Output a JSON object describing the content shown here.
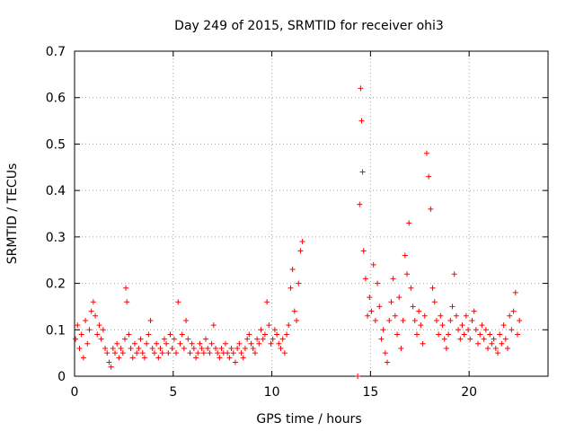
{
  "chart_data": {
    "type": "scatter",
    "title": "Day 249 of 2015, SRMTID for receiver ohi3",
    "xlabel": "GPS time / hours",
    "ylabel": "SRMTID / TECUs",
    "xlim": [
      0,
      24
    ],
    "ylim": [
      0,
      0.7
    ],
    "xticks": [
      0,
      5,
      10,
      15,
      20
    ],
    "yticks": [
      0,
      0.1,
      0.2,
      0.3,
      0.4,
      0.5,
      0.6,
      0.7
    ],
    "grid": true,
    "marker": "+",
    "color": "#ff0000",
    "series": [
      {
        "name": "SRMTID",
        "points": [
          [
            0.05,
            0.08
          ],
          [
            0.15,
            0.11
          ],
          [
            0.25,
            0.06
          ],
          [
            0.35,
            0.09
          ],
          [
            0.45,
            0.04
          ],
          [
            0.55,
            0.12
          ],
          [
            0.65,
            0.07
          ],
          [
            0.75,
            0.1
          ],
          [
            0.85,
            0.14
          ],
          [
            0.95,
            0.16
          ],
          [
            1.05,
            0.13
          ],
          [
            1.15,
            0.09
          ],
          [
            1.25,
            0.11
          ],
          [
            1.35,
            0.08
          ],
          [
            1.45,
            0.1
          ],
          [
            1.55,
            0.06
          ],
          [
            1.65,
            0.05
          ],
          [
            1.75,
            0.03
          ],
          [
            1.85,
            0.02
          ],
          [
            1.95,
            0.06
          ],
          [
            2.05,
            0.05
          ],
          [
            2.15,
            0.07
          ],
          [
            2.25,
            0.04
          ],
          [
            2.35,
            0.06
          ],
          [
            2.45,
            0.05
          ],
          [
            2.55,
            0.08
          ],
          [
            2.6,
            0.19
          ],
          [
            2.65,
            0.16
          ],
          [
            2.75,
            0.09
          ],
          [
            2.85,
            0.06
          ],
          [
            2.95,
            0.04
          ],
          [
            3.05,
            0.07
          ],
          [
            3.15,
            0.05
          ],
          [
            3.25,
            0.06
          ],
          [
            3.35,
            0.08
          ],
          [
            3.45,
            0.05
          ],
          [
            3.55,
            0.04
          ],
          [
            3.65,
            0.07
          ],
          [
            3.75,
            0.09
          ],
          [
            3.85,
            0.12
          ],
          [
            3.95,
            0.06
          ],
          [
            4.05,
            0.05
          ],
          [
            4.15,
            0.07
          ],
          [
            4.25,
            0.04
          ],
          [
            4.35,
            0.06
          ],
          [
            4.45,
            0.05
          ],
          [
            4.55,
            0.08
          ],
          [
            4.65,
            0.07
          ],
          [
            4.75,
            0.05
          ],
          [
            4.85,
            0.09
          ],
          [
            4.95,
            0.06
          ],
          [
            5.05,
            0.08
          ],
          [
            5.15,
            0.05
          ],
          [
            5.25,
            0.16
          ],
          [
            5.35,
            0.07
          ],
          [
            5.45,
            0.09
          ],
          [
            5.55,
            0.06
          ],
          [
            5.65,
            0.12
          ],
          [
            5.75,
            0.08
          ],
          [
            5.85,
            0.05
          ],
          [
            5.95,
            0.07
          ],
          [
            6.05,
            0.06
          ],
          [
            6.15,
            0.04
          ],
          [
            6.25,
            0.05
          ],
          [
            6.35,
            0.07
          ],
          [
            6.45,
            0.06
          ],
          [
            6.55,
            0.05
          ],
          [
            6.65,
            0.08
          ],
          [
            6.75,
            0.06
          ],
          [
            6.85,
            0.05
          ],
          [
            6.95,
            0.07
          ],
          [
            7.05,
            0.11
          ],
          [
            7.15,
            0.06
          ],
          [
            7.25,
            0.05
          ],
          [
            7.35,
            0.04
          ],
          [
            7.45,
            0.06
          ],
          [
            7.55,
            0.05
          ],
          [
            7.65,
            0.07
          ],
          [
            7.75,
            0.05
          ],
          [
            7.85,
            0.04
          ],
          [
            7.95,
            0.06
          ],
          [
            8.05,
            0.05
          ],
          [
            8.15,
            0.03
          ],
          [
            8.25,
            0.06
          ],
          [
            8.35,
            0.07
          ],
          [
            8.45,
            0.05
          ],
          [
            8.55,
            0.04
          ],
          [
            8.65,
            0.06
          ],
          [
            8.75,
            0.08
          ],
          [
            8.85,
            0.09
          ],
          [
            8.95,
            0.07
          ],
          [
            9.05,
            0.06
          ],
          [
            9.15,
            0.05
          ],
          [
            9.25,
            0.08
          ],
          [
            9.35,
            0.07
          ],
          [
            9.45,
            0.1
          ],
          [
            9.55,
            0.08
          ],
          [
            9.65,
            0.09
          ],
          [
            9.75,
            0.16
          ],
          [
            9.85,
            0.11
          ],
          [
            9.95,
            0.07
          ],
          [
            10.05,
            0.08
          ],
          [
            10.15,
            0.1
          ],
          [
            10.25,
            0.09
          ],
          [
            10.35,
            0.07
          ],
          [
            10.45,
            0.06
          ],
          [
            10.55,
            0.08
          ],
          [
            10.65,
            0.05
          ],
          [
            10.75,
            0.09
          ],
          [
            10.85,
            0.11
          ],
          [
            10.95,
            0.19
          ],
          [
            11.05,
            0.23
          ],
          [
            11.15,
            0.14
          ],
          [
            11.25,
            0.12
          ],
          [
            11.35,
            0.2
          ],
          [
            11.45,
            0.27
          ],
          [
            11.55,
            0.29
          ],
          [
            14.35,
            0.0
          ],
          [
            14.45,
            0.37
          ],
          [
            14.5,
            0.62
          ],
          [
            14.55,
            0.55
          ],
          [
            14.6,
            0.44
          ],
          [
            14.65,
            0.27
          ],
          [
            14.75,
            0.21
          ],
          [
            14.85,
            0.13
          ],
          [
            14.95,
            0.17
          ],
          [
            15.05,
            0.14
          ],
          [
            15.15,
            0.24
          ],
          [
            15.25,
            0.12
          ],
          [
            15.35,
            0.2
          ],
          [
            15.45,
            0.15
          ],
          [
            15.55,
            0.08
          ],
          [
            15.65,
            0.1
          ],
          [
            15.75,
            0.05
          ],
          [
            15.85,
            0.03
          ],
          [
            15.95,
            0.12
          ],
          [
            16.05,
            0.16
          ],
          [
            16.15,
            0.21
          ],
          [
            16.25,
            0.13
          ],
          [
            16.35,
            0.09
          ],
          [
            16.45,
            0.17
          ],
          [
            16.55,
            0.06
          ],
          [
            16.65,
            0.12
          ],
          [
            16.75,
            0.26
          ],
          [
            16.85,
            0.22
          ],
          [
            16.95,
            0.33
          ],
          [
            17.05,
            0.19
          ],
          [
            17.15,
            0.15
          ],
          [
            17.25,
            0.12
          ],
          [
            17.35,
            0.09
          ],
          [
            17.45,
            0.14
          ],
          [
            17.55,
            0.11
          ],
          [
            17.65,
            0.07
          ],
          [
            17.75,
            0.13
          ],
          [
            17.85,
            0.48
          ],
          [
            17.95,
            0.43
          ],
          [
            18.05,
            0.36
          ],
          [
            18.15,
            0.19
          ],
          [
            18.25,
            0.16
          ],
          [
            18.35,
            0.12
          ],
          [
            18.45,
            0.09
          ],
          [
            18.55,
            0.13
          ],
          [
            18.65,
            0.11
          ],
          [
            18.75,
            0.08
          ],
          [
            18.85,
            0.06
          ],
          [
            18.95,
            0.09
          ],
          [
            19.05,
            0.12
          ],
          [
            19.15,
            0.15
          ],
          [
            19.25,
            0.22
          ],
          [
            19.35,
            0.13
          ],
          [
            19.45,
            0.1
          ],
          [
            19.55,
            0.08
          ],
          [
            19.65,
            0.11
          ],
          [
            19.75,
            0.09
          ],
          [
            19.85,
            0.13
          ],
          [
            19.95,
            0.1
          ],
          [
            20.05,
            0.08
          ],
          [
            20.15,
            0.12
          ],
          [
            20.25,
            0.14
          ],
          [
            20.35,
            0.1
          ],
          [
            20.45,
            0.07
          ],
          [
            20.55,
            0.09
          ],
          [
            20.65,
            0.11
          ],
          [
            20.75,
            0.08
          ],
          [
            20.85,
            0.1
          ],
          [
            20.95,
            0.06
          ],
          [
            21.05,
            0.09
          ],
          [
            21.15,
            0.07
          ],
          [
            21.25,
            0.08
          ],
          [
            21.35,
            0.06
          ],
          [
            21.45,
            0.05
          ],
          [
            21.55,
            0.09
          ],
          [
            21.65,
            0.07
          ],
          [
            21.75,
            0.11
          ],
          [
            21.85,
            0.08
          ],
          [
            21.95,
            0.06
          ],
          [
            22.05,
            0.13
          ],
          [
            22.15,
            0.1
          ],
          [
            22.25,
            0.14
          ],
          [
            22.35,
            0.18
          ],
          [
            22.45,
            0.09
          ],
          [
            22.55,
            0.12
          ]
        ]
      }
    ]
  }
}
